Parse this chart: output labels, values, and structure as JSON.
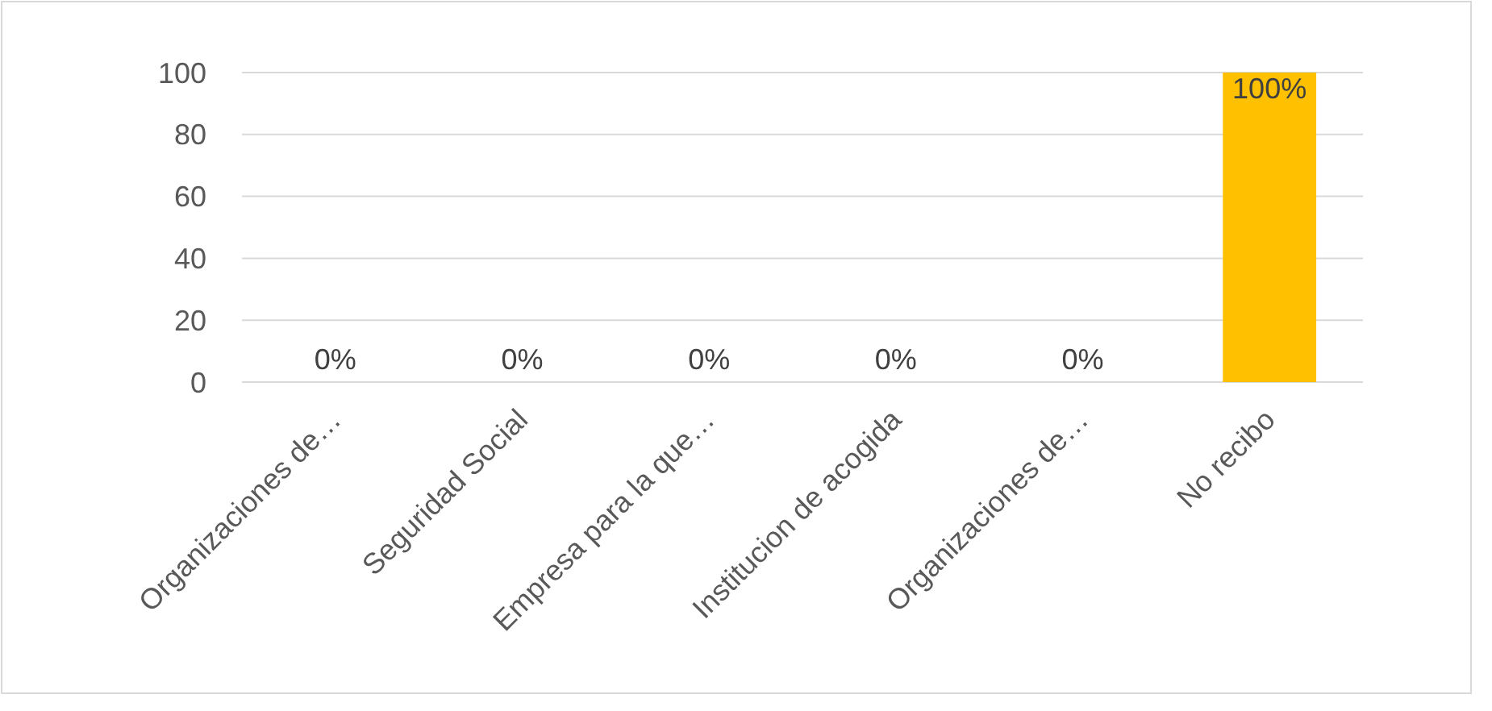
{
  "chart_data": {
    "type": "bar",
    "categories": [
      "Organizaciones de…",
      "Seguridad Social",
      "Empresa para la que…",
      "Institucion de acogida",
      "Organizaciones de…",
      "No recibo"
    ],
    "values": [
      0,
      0,
      0,
      0,
      0,
      100
    ],
    "colors": [
      "#c0622a",
      "#1f5c99",
      "#1a8cc4",
      "#0a8a3a",
      "#c00000",
      "#ffc000"
    ],
    "value_labels": [
      "0%",
      "0%",
      "0%",
      "0%",
      "0%",
      "100%"
    ],
    "ylim": [
      0,
      100
    ],
    "yticks": [
      0,
      20,
      40,
      60,
      80,
      100
    ],
    "grid": "y"
  }
}
